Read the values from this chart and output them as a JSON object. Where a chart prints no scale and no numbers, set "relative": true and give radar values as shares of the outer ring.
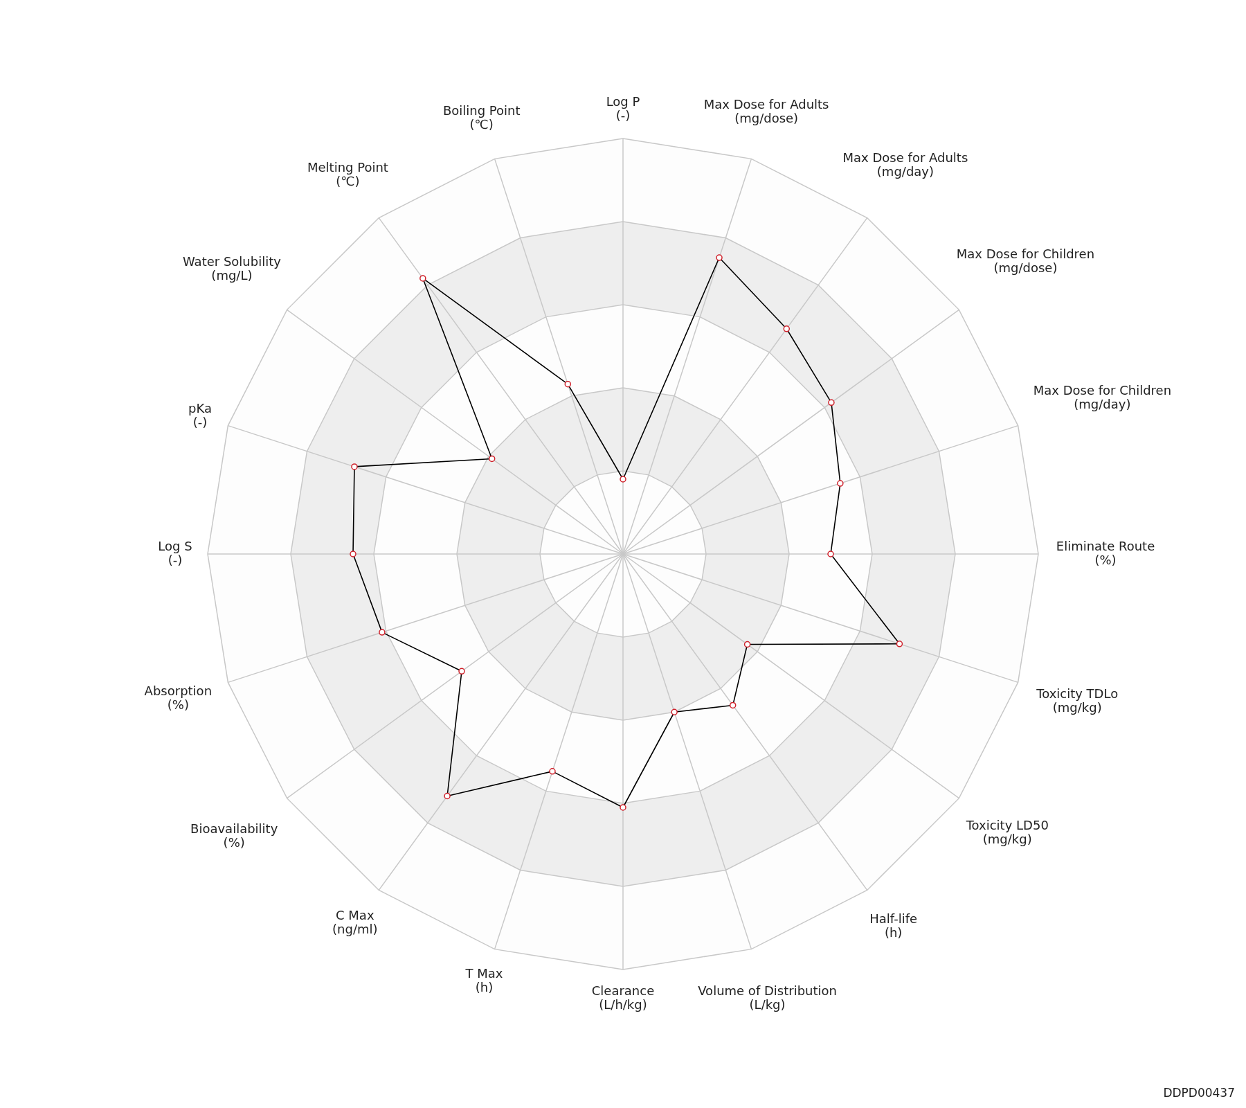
{
  "chart_data": {
    "type": "radar",
    "relative": true,
    "grid": true,
    "marker": "circle",
    "line_style": "solid",
    "categories": [
      "Log P\n(-)",
      "Max Dose for Adults\n(mg/dose)",
      "Max Dose for Adults\n(mg/day)",
      "Max Dose for Children\n(mg/dose)",
      "Max Dose for Children\n(mg/day)",
      "Eliminate Route\n(%)",
      "Toxicity TDLo\n(mg/kg)",
      "Toxicity LD50\n(mg/kg)",
      "Half-life\n(h)",
      "Volume of Distribution\n(L/kg)",
      "Clearance\n(L/h/kg)",
      "T Max\n(h)",
      "C Max\n(ng/ml)",
      "Bioavailability\n(%)",
      "Absorption\n(%)",
      "Log S\n(-)",
      "pKa\n(-)",
      "Water Solubility\n(mg/L)",
      "Melting Point\n(℃)",
      "Boiling Point\n(℃)"
    ],
    "series": [
      {
        "color": "#000000",
        "values": [
          0.18,
          0.75,
          0.67,
          0.62,
          0.55,
          0.5,
          0.7,
          0.37,
          0.45,
          0.4,
          0.61,
          0.55,
          0.72,
          0.48,
          0.61,
          0.65,
          0.68,
          0.39,
          0.82,
          0.43
        ]
      }
    ],
    "annotations": [
      "DDPD00437"
    ]
  }
}
